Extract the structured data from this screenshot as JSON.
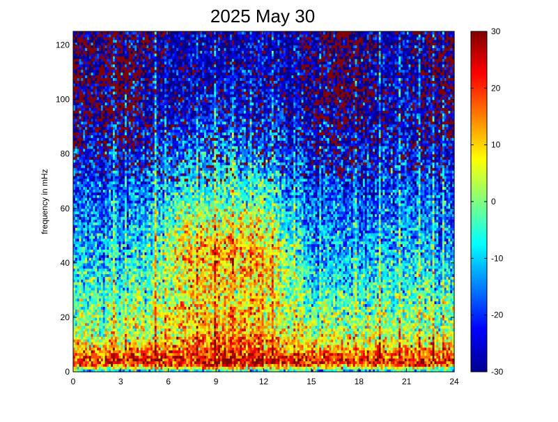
{
  "chart_data": {
    "type": "heatmap",
    "title": "2025 May 30",
    "xlabel": "",
    "ylabel": "frequency in mHz",
    "xlim": [
      0,
      24
    ],
    "ylim": [
      0,
      125
    ],
    "x_ticks": [
      "0",
      "3",
      "6",
      "9",
      "12",
      "15",
      "18",
      "21",
      "24"
    ],
    "y_ticks": [
      "0",
      "20",
      "40",
      "60",
      "80",
      "100",
      "120"
    ],
    "colorbar": {
      "range": [
        -30,
        30
      ],
      "ticks": [
        "-30",
        "-20",
        "-10",
        "0",
        "10",
        "20",
        "30"
      ],
      "colormap": "jet"
    },
    "grid": false,
    "power_profile": {
      "frequency_mHz": [
        0,
        2,
        4,
        6,
        10,
        15,
        20,
        30,
        40,
        50,
        60,
        70,
        80,
        90,
        100,
        110,
        125
      ],
      "value_quiet": [
        -15,
        12,
        22,
        18,
        8,
        2,
        0,
        -6,
        -10,
        -14,
        -17,
        -20,
        -22,
        -25,
        -26,
        -27,
        -28
      ],
      "value_active": [
        -15,
        20,
        26,
        22,
        16,
        12,
        10,
        8,
        12,
        8,
        0,
        -8,
        -14,
        -20,
        -24,
        -26,
        -27
      ]
    },
    "active_hours": [
      4,
      15
    ],
    "high_frequency_noise": {
      "frequency_above_mHz": 70,
      "value": 30,
      "peak_hours": [
        0,
        3,
        17,
        24
      ]
    },
    "bright_streak_hours": [
      2.6,
      3.3,
      5.2,
      7.8,
      8.9,
      10.1,
      11.2,
      12.6,
      13.9,
      15.6,
      17.8,
      19.3,
      20.6,
      21.8,
      22.7,
      23.3
    ]
  }
}
